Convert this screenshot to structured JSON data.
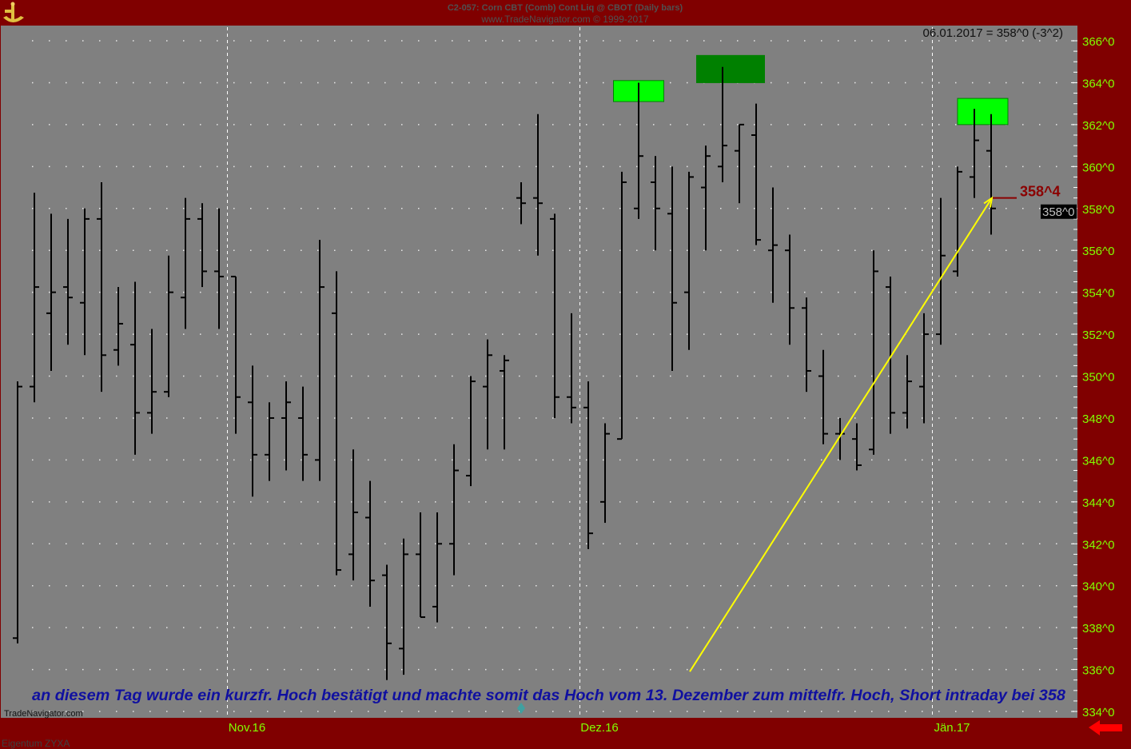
{
  "header": {
    "title": "C2-057:  Corn CBT (Comb) Cont Liq @ CBOT  (Daily bars)",
    "copyright": "www.TradeNavigator.com © 1999-2017"
  },
  "readout": "06.01.2017 = 358^0 (-3^2)",
  "watermark": "TradeNavigator.com",
  "footer_owner": "Eigentum ZYXA",
  "annotation": "an diesem Tag wurde ein kurzfr. Hoch bestätigt und machte somit das Hoch vom 13. Dezember zum mittelfr. Hoch, Short intraday bei 358",
  "price_marker_label": "358^4",
  "last_price_label": "358^0",
  "colors": {
    "frame": "#800000",
    "plot": "#808080",
    "axis_text": "#80ff00",
    "bars": "#000000",
    "annotation": "#1010a0",
    "arrow": "#ffff00",
    "marker": "#8b0000",
    "box_light": "#00ff00",
    "box_dark": "#008000"
  },
  "icons": {
    "logo": "trade-navigator-logo-icon",
    "scroll": "red-arrow-left-icon"
  },
  "chart_data": {
    "type": "ohlc",
    "ylim": [
      334,
      366
    ],
    "y_ticks": [
      "366^0",
      "364^0",
      "362^0",
      "360^0",
      "358^0",
      "356^0",
      "354^0",
      "352^0",
      "350^0",
      "348^0",
      "346^0",
      "344^0",
      "342^0",
      "340^0",
      "338^0",
      "336^0",
      "334^0"
    ],
    "x_tick_labels": [
      {
        "label": "Nov.16",
        "bar_index": 13
      },
      {
        "label": "Dez.16",
        "bar_index": 34
      },
      {
        "label": "Jän.17",
        "bar_index": 55
      }
    ],
    "grid": true,
    "bars": [
      {
        "o": 337.5,
        "h": 349.75,
        "l": 337.25,
        "c": 349.5
      },
      {
        "o": 349.5,
        "h": 358.75,
        "l": 348.75,
        "c": 354.25
      },
      {
        "o": 353.0,
        "h": 357.75,
        "l": 350.25,
        "c": 354.0
      },
      {
        "o": 354.25,
        "h": 357.5,
        "l": 351.5,
        "c": 353.75
      },
      {
        "o": 353.5,
        "h": 358.0,
        "l": 351.0,
        "c": 357.5
      },
      {
        "o": 357.5,
        "h": 359.25,
        "l": 349.25,
        "c": 351.0
      },
      {
        "o": 351.25,
        "h": 354.25,
        "l": 350.5,
        "c": 352.5
      },
      {
        "o": 351.5,
        "h": 354.5,
        "l": 346.25,
        "c": 348.25
      },
      {
        "o": 348.25,
        "h": 352.25,
        "l": 347.25,
        "c": 349.25
      },
      {
        "o": 349.25,
        "h": 355.75,
        "l": 349.0,
        "c": 354.0
      },
      {
        "o": 353.75,
        "h": 358.5,
        "l": 352.25,
        "c": 357.5
      },
      {
        "o": 357.5,
        "h": 358.25,
        "l": 354.25,
        "c": 355.0
      },
      {
        "o": 355.0,
        "h": 358.0,
        "l": 352.25,
        "c": 354.75
      },
      {
        "o": 354.75,
        "h": 354.75,
        "l": 347.25,
        "c": 349.0
      },
      {
        "o": 348.75,
        "h": 350.5,
        "l": 344.25,
        "c": 346.25
      },
      {
        "o": 346.25,
        "h": 348.75,
        "l": 345.0,
        "c": 348.0
      },
      {
        "o": 348.0,
        "h": 349.75,
        "l": 345.5,
        "c": 348.75
      },
      {
        "o": 348.0,
        "h": 349.5,
        "l": 345.0,
        "c": 346.25
      },
      {
        "o": 346.0,
        "h": 356.5,
        "l": 345.0,
        "c": 354.25
      },
      {
        "o": 353.0,
        "h": 355.0,
        "l": 340.5,
        "c": 340.75
      },
      {
        "o": 341.5,
        "h": 346.5,
        "l": 340.25,
        "c": 343.5
      },
      {
        "o": 343.25,
        "h": 345.0,
        "l": 339.0,
        "c": 340.25
      },
      {
        "o": 340.5,
        "h": 341.0,
        "l": 335.5,
        "c": 337.25
      },
      {
        "o": 337.0,
        "h": 342.25,
        "l": 335.75,
        "c": 341.5
      },
      {
        "o": 341.5,
        "h": 343.5,
        "l": 338.5,
        "c": 338.5
      },
      {
        "o": 339.0,
        "h": 343.5,
        "l": 338.25,
        "c": 342.0
      },
      {
        "o": 342.0,
        "h": 346.75,
        "l": 340.5,
        "c": 345.5
      },
      {
        "o": 345.25,
        "h": 350.0,
        "l": 344.75,
        "c": 349.75
      },
      {
        "o": 349.5,
        "h": 351.75,
        "l": 346.5,
        "c": 351.0
      },
      {
        "o": 350.25,
        "h": 351.0,
        "l": 346.5,
        "c": 350.75
      },
      {
        "o": 358.5,
        "h": 359.25,
        "l": 357.25,
        "c": 358.25
      },
      {
        "o": 358.5,
        "h": 362.5,
        "l": 355.75,
        "c": 358.25
      },
      {
        "o": 357.5,
        "h": 357.75,
        "l": 348.0,
        "c": 349.0
      },
      {
        "o": 349.0,
        "h": 353.0,
        "l": 347.75,
        "c": 348.5
      },
      {
        "o": 348.5,
        "h": 349.75,
        "l": 341.75,
        "c": 342.5
      },
      {
        "o": 344.0,
        "h": 347.75,
        "l": 343.0,
        "c": 347.25
      },
      {
        "o": 347.0,
        "h": 359.75,
        "l": 347.0,
        "c": 359.25
      },
      {
        "o": 358.0,
        "h": 364.0,
        "l": 357.5,
        "c": 360.5
      },
      {
        "o": 359.25,
        "h": 360.5,
        "l": 356.0,
        "c": 358.0
      },
      {
        "o": 357.75,
        "h": 360.0,
        "l": 350.25,
        "c": 353.5
      },
      {
        "o": 354.0,
        "h": 359.75,
        "l": 351.25,
        "c": 359.5
      },
      {
        "o": 359.0,
        "h": 361.0,
        "l": 356.0,
        "c": 360.5
      },
      {
        "o": 360.0,
        "h": 364.75,
        "l": 359.25,
        "c": 361.0
      },
      {
        "o": 360.75,
        "h": 362.0,
        "l": 358.25,
        "c": 362.0
      },
      {
        "o": 361.5,
        "h": 363.0,
        "l": 356.25,
        "c": 356.5
      },
      {
        "o": 356.0,
        "h": 359.0,
        "l": 353.5,
        "c": 356.25
      },
      {
        "o": 356.0,
        "h": 356.75,
        "l": 351.5,
        "c": 353.25
      },
      {
        "o": 353.25,
        "h": 353.75,
        "l": 349.25,
        "c": 350.25
      },
      {
        "o": 350.0,
        "h": 351.25,
        "l": 346.75,
        "c": 347.25
      },
      {
        "o": 347.25,
        "h": 348.0,
        "l": 346.0,
        "c": 347.25
      },
      {
        "o": 347.0,
        "h": 347.75,
        "l": 345.5,
        "c": 345.75
      },
      {
        "o": 346.5,
        "h": 356.0,
        "l": 346.25,
        "c": 355.0
      },
      {
        "o": 354.25,
        "h": 354.75,
        "l": 347.25,
        "c": 348.25
      },
      {
        "o": 348.25,
        "h": 351.0,
        "l": 347.5,
        "c": 349.75
      },
      {
        "o": 349.5,
        "h": 353.0,
        "l": 347.75,
        "c": 352.0
      },
      {
        "o": 352.0,
        "h": 358.5,
        "l": 351.5,
        "c": 355.75
      },
      {
        "o": 355.0,
        "h": 360.0,
        "l": 354.75,
        "c": 359.75
      },
      {
        "o": 359.5,
        "h": 362.75,
        "l": 358.5,
        "c": 361.25
      },
      {
        "o": 360.75,
        "h": 362.5,
        "l": 356.75,
        "c": 358.0
      }
    ],
    "highlight_boxes": [
      {
        "bar_index": 37,
        "top": 364.1,
        "bottom": 363.1,
        "color": "light"
      },
      {
        "bar_index": 42,
        "top": 365.3,
        "bottom": 364.0,
        "color": "dark"
      },
      {
        "bar_index": 57.5,
        "top": 363.25,
        "bottom": 362.0,
        "color": "light"
      }
    ],
    "trend_arrow": {
      "from_bar": 40,
      "from_price": 335.9,
      "to_bar": 58,
      "to_price": 358.5
    },
    "price_marker": {
      "bar_index": 58,
      "price": 358.5
    },
    "last_price": 358.0
  }
}
